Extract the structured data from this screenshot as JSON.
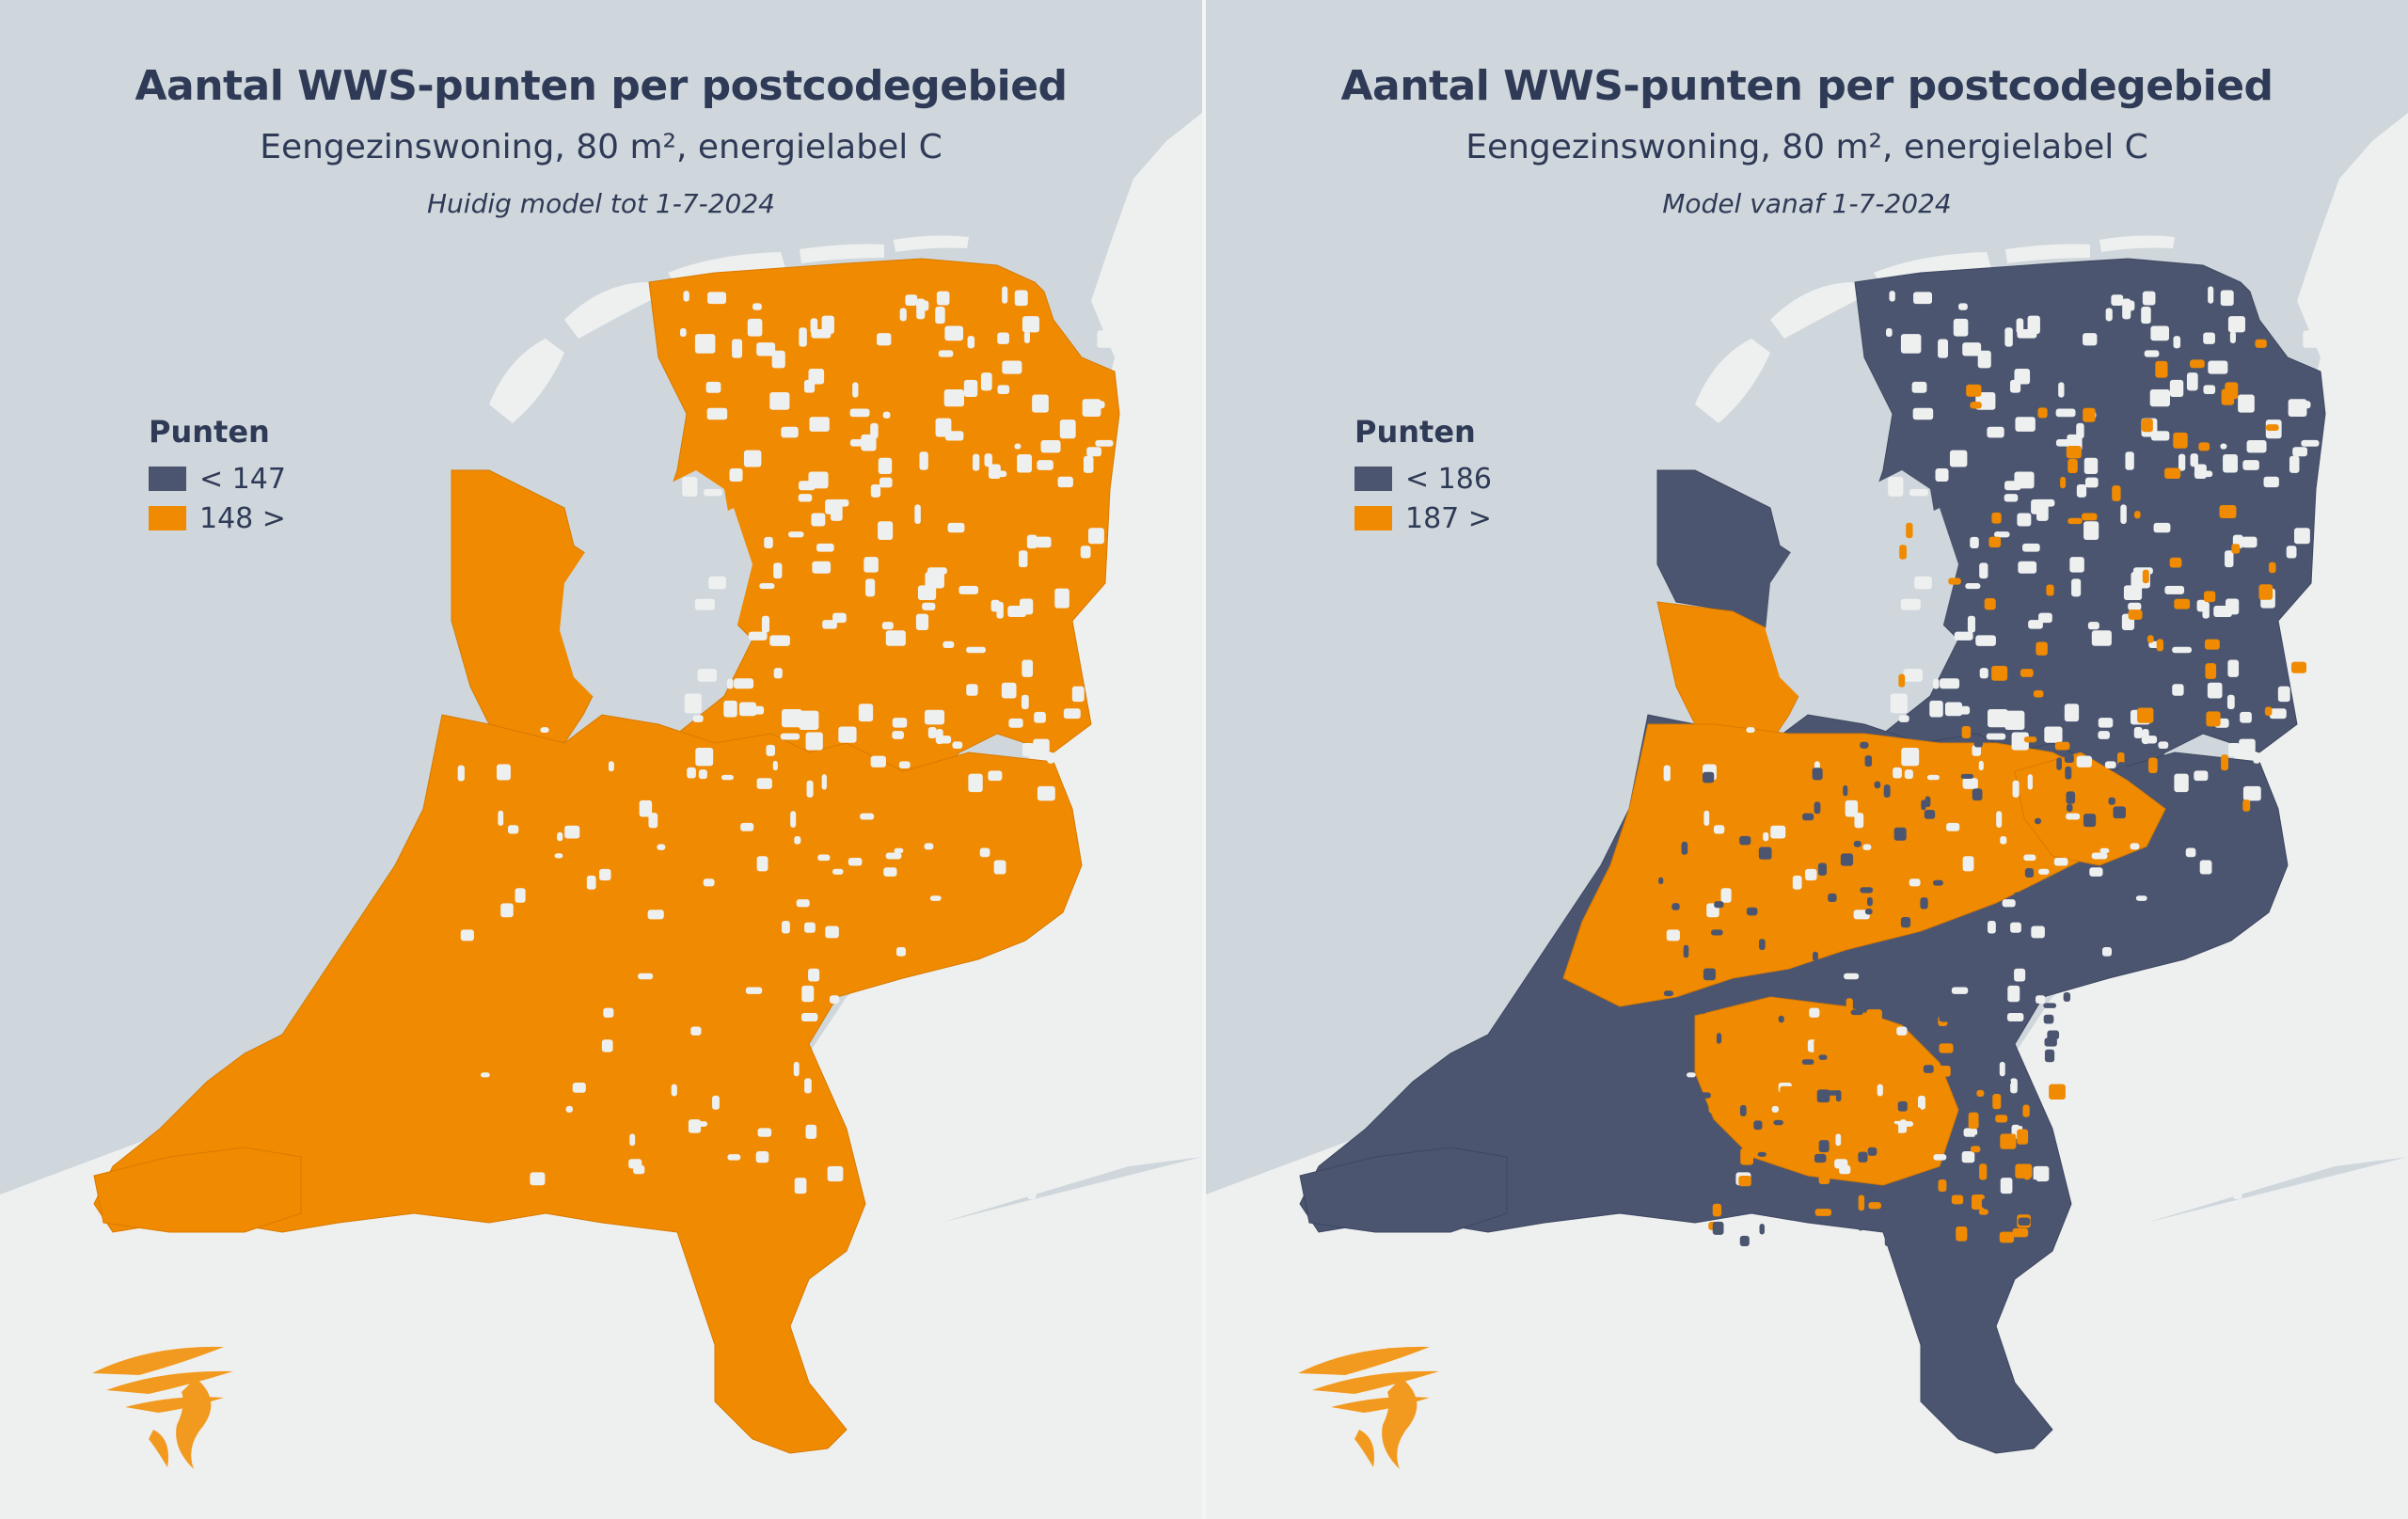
{
  "colors": {
    "sea": "#cfd7dc",
    "land": "#eef0f0",
    "orange": "#f08a00",
    "navy": "#4b5570",
    "text": "#2f3a57",
    "logo": "#f29a1f"
  },
  "panels": [
    {
      "title": "Aantal WWS-punten per postcodegebied",
      "subtitle": "Eengezinswoning, 80 m², energielabel C",
      "note": "Huidig model tot 1-7-2024",
      "legend": {
        "title": "Punten",
        "items": [
          {
            "label": "< 147",
            "color": "#4b5570"
          },
          {
            "label": "148 >",
            "color": "#f08a00"
          }
        ]
      },
      "dominant_class": "148 >"
    },
    {
      "title": "Aantal WWS-punten per postcodegebied",
      "subtitle": "Eengezinswoning, 80 m², energielabel C",
      "note": "Model vanaf 1-7-2024",
      "legend": {
        "title": "Punten",
        "items": [
          {
            "label": "< 186",
            "color": "#4b5570"
          },
          {
            "label": "187 >",
            "color": "#f08a00"
          }
        ]
      },
      "dominant_class": "mixed: west/centre 187 >, north/east/south < 186"
    }
  ],
  "logo": {
    "name": "orange-winged-logo-icon"
  }
}
